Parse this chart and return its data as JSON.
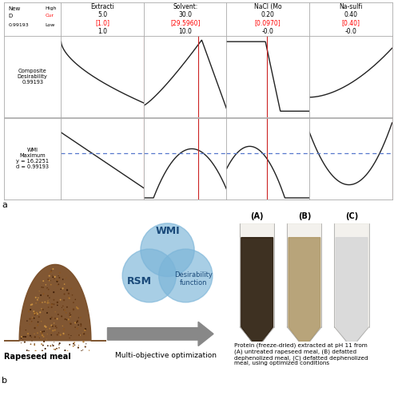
{
  "header_line1": [
    "Extracti",
    "Solvent:",
    "NaCl (Mo",
    "Na-sulfi"
  ],
  "header_line2": [
    "5.0",
    "30.0",
    "0.20",
    "0.40"
  ],
  "header_line3": [
    "[1.0]",
    "[29.5960]",
    "[0.0970]",
    "[0.40]"
  ],
  "header_line4": [
    "1.0",
    "10.0",
    "-0.0",
    "-0.0"
  ],
  "row_label_0": "Composite\nDesirability\n0.99193",
  "row_label_1": "WMI\nMaximum\ny = 16.2251\nd = 0.99193",
  "topleft_line1": "New",
  "topleft_line2": "D",
  "topleft_line3": "0.99193",
  "topleft_right1": "High",
  "topleft_right2": "Cur",
  "topleft_right3": "Low",
  "red_col": "#cc2222",
  "blue_dash": "#5577cc",
  "curve_col": "#222222",
  "border_col": "#aaaaaa",
  "venn_col": "#7ab4d8",
  "venn_alpha": 0.65,
  "wmi_label": "WMI",
  "rsm_label": "RSM",
  "desirability_label": "Desirability\nfunction",
  "arrow_col": "#888888",
  "arrow_text": "Multi-objective optimization",
  "rapeseed_label": "Rapeseed meal",
  "photo_labels": [
    "(A)",
    "(B)",
    "(C)"
  ],
  "caption": "Protein (freeze-dried) extracted at pH 11 from\n(A) untreated rapeseed meal, (B) defatted\ndephenolized meal, (C) defatted dephenolized\nmeal, using optimized conditions",
  "label_a": "a",
  "label_b": "b"
}
